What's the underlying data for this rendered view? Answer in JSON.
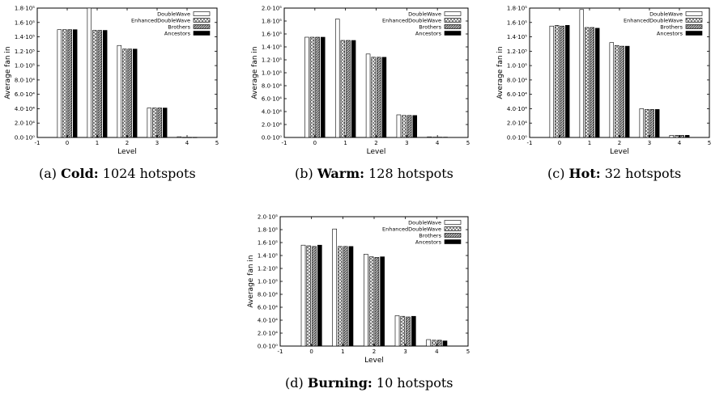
{
  "legend_series": [
    "DoubleWave",
    "EnhancedDoubleWave",
    "Brothers",
    "Ancestors"
  ],
  "ylabel": "Average fan in",
  "xlabel": "Level",
  "panels": [
    {
      "id": "a",
      "caption": {
        "prefix": "(a) ",
        "bold": "Cold:",
        "rest": " 1024 hotspots"
      }
    },
    {
      "id": "b",
      "caption": {
        "prefix": "(b) ",
        "bold": "Warm:",
        "rest": " 128 hotspots"
      }
    },
    {
      "id": "c",
      "caption": {
        "prefix": "(c) ",
        "bold": "Hot:",
        "rest": " 32 hotspots"
      }
    },
    {
      "id": "d",
      "caption": {
        "prefix": "(d) ",
        "bold": "Burning:",
        "rest": " 10 hotspots"
      }
    }
  ],
  "chart_data": [
    {
      "type": "bar",
      "xlabel": "Level",
      "ylabel": "Average fan in",
      "xlim": [
        -1,
        5
      ],
      "xticks": [
        "-1",
        "0",
        "1",
        "2",
        "3",
        "4",
        "5"
      ],
      "ylim": [
        0,
        180000
      ],
      "yticks": [
        {
          "value": 0,
          "label": "0.0·10⁰"
        },
        {
          "value": 20000,
          "label": "2.0·10⁴"
        },
        {
          "value": 40000,
          "label": "4.0·10⁴"
        },
        {
          "value": 60000,
          "label": "6.0·10⁴"
        },
        {
          "value": 80000,
          "label": "8.0·10⁴"
        },
        {
          "value": 100000,
          "label": "1.0·10⁵"
        },
        {
          "value": 120000,
          "label": "1.2·10⁵"
        },
        {
          "value": 140000,
          "label": "1.4·10⁵"
        },
        {
          "value": 160000,
          "label": "1.6·10⁵"
        },
        {
          "value": 180000,
          "label": "1.8·10⁵"
        }
      ],
      "legend_position": "top-right",
      "x": [
        0,
        1,
        2,
        3,
        4
      ],
      "series": [
        {
          "name": "DoubleWave",
          "values": [
            150000,
            180000,
            128000,
            41000,
            1000
          ]
        },
        {
          "name": "EnhancedDoubleWave",
          "values": [
            150000,
            149000,
            123000,
            41000,
            300
          ]
        },
        {
          "name": "Brothers",
          "values": [
            150000,
            149000,
            123000,
            41000,
            300
          ]
        },
        {
          "name": "Ancestors",
          "values": [
            150000,
            149000,
            123000,
            41000,
            300
          ]
        }
      ]
    },
    {
      "type": "bar",
      "xlabel": "Level",
      "ylabel": "Average fan in",
      "xlim": [
        -1,
        5
      ],
      "xticks": [
        "-1",
        "0",
        "1",
        "2",
        "3",
        "4",
        "5"
      ],
      "ylim": [
        0,
        200000
      ],
      "yticks": [
        {
          "value": 0,
          "label": "0.0·10⁰"
        },
        {
          "value": 20000,
          "label": "2.0·10⁴"
        },
        {
          "value": 40000,
          "label": "4.0·10⁴"
        },
        {
          "value": 60000,
          "label": "6.0·10⁴"
        },
        {
          "value": 80000,
          "label": "8.0·10⁴"
        },
        {
          "value": 100000,
          "label": "1.0·10⁵"
        },
        {
          "value": 120000,
          "label": "1.2·10⁵"
        },
        {
          "value": 140000,
          "label": "1.4·10⁵"
        },
        {
          "value": 160000,
          "label": "1.6·10⁵"
        },
        {
          "value": 180000,
          "label": "1.8·10⁵"
        },
        {
          "value": 200000,
          "label": "2.0·10⁵"
        }
      ],
      "legend_position": "top-right",
      "x": [
        0,
        1,
        2,
        3,
        4
      ],
      "series": [
        {
          "name": "DoubleWave",
          "values": [
            155000,
            183000,
            129000,
            35000,
            1000
          ]
        },
        {
          "name": "EnhancedDoubleWave",
          "values": [
            155000,
            150000,
            124000,
            34000,
            500
          ]
        },
        {
          "name": "Brothers",
          "values": [
            155000,
            150000,
            124000,
            34000,
            500
          ]
        },
        {
          "name": "Ancestors",
          "values": [
            155000,
            150000,
            124000,
            34000,
            500
          ]
        }
      ]
    },
    {
      "type": "bar",
      "xlabel": "Level",
      "ylabel": "Average fan in",
      "xlim": [
        -1,
        5
      ],
      "xticks": [
        "-1",
        "0",
        "1",
        "2",
        "3",
        "4",
        "5"
      ],
      "ylim": [
        0,
        180000
      ],
      "yticks": [
        {
          "value": 0,
          "label": "0.0·10⁰"
        },
        {
          "value": 20000,
          "label": "2.0·10⁴"
        },
        {
          "value": 40000,
          "label": "4.0·10⁴"
        },
        {
          "value": 60000,
          "label": "6.0·10⁴"
        },
        {
          "value": 80000,
          "label": "8.0·10⁴"
        },
        {
          "value": 100000,
          "label": "1.0·10⁵"
        },
        {
          "value": 120000,
          "label": "1.2·10⁵"
        },
        {
          "value": 140000,
          "label": "1.4·10⁵"
        },
        {
          "value": 160000,
          "label": "1.6·10⁵"
        },
        {
          "value": 180000,
          "label": "1.8·10⁵"
        }
      ],
      "legend_position": "top-right",
      "x": [
        0,
        1,
        2,
        3,
        4
      ],
      "series": [
        {
          "name": "DoubleWave",
          "values": [
            155000,
            178000,
            132000,
            40000,
            3000
          ]
        },
        {
          "name": "EnhancedDoubleWave",
          "values": [
            156000,
            153000,
            128000,
            39000,
            3000
          ]
        },
        {
          "name": "Brothers",
          "values": [
            155000,
            153000,
            127000,
            39000,
            3000
          ]
        },
        {
          "name": "Ancestors",
          "values": [
            156000,
            152000,
            127000,
            39000,
            3000
          ]
        }
      ]
    },
    {
      "type": "bar",
      "xlabel": "Level",
      "ylabel": "Average fan in",
      "xlim": [
        -1,
        5
      ],
      "xticks": [
        "-1",
        "0",
        "1",
        "2",
        "3",
        "4",
        "5"
      ],
      "ylim": [
        0,
        200000
      ],
      "yticks": [
        {
          "value": 0,
          "label": "0.0·10⁰"
        },
        {
          "value": 20000,
          "label": "2.0·10⁴"
        },
        {
          "value": 40000,
          "label": "4.0·10⁴"
        },
        {
          "value": 60000,
          "label": "6.0·10⁴"
        },
        {
          "value": 80000,
          "label": "8.0·10⁴"
        },
        {
          "value": 100000,
          "label": "1.0·10⁵"
        },
        {
          "value": 120000,
          "label": "1.2·10⁵"
        },
        {
          "value": 140000,
          "label": "1.4·10⁵"
        },
        {
          "value": 160000,
          "label": "1.6·10⁵"
        },
        {
          "value": 180000,
          "label": "1.8·10⁵"
        },
        {
          "value": 200000,
          "label": "2.0·10⁵"
        }
      ],
      "legend_position": "top-right",
      "x": [
        0,
        1,
        2,
        3,
        4
      ],
      "series": [
        {
          "name": "DoubleWave",
          "values": [
            156000,
            181000,
            142000,
            47000,
            10000
          ]
        },
        {
          "name": "EnhancedDoubleWave",
          "values": [
            155000,
            154000,
            138000,
            46000,
            9000
          ]
        },
        {
          "name": "Brothers",
          "values": [
            154000,
            154000,
            137000,
            45000,
            9000
          ]
        },
        {
          "name": "Ancestors",
          "values": [
            156000,
            154000,
            138000,
            46000,
            8000
          ]
        }
      ]
    }
  ]
}
